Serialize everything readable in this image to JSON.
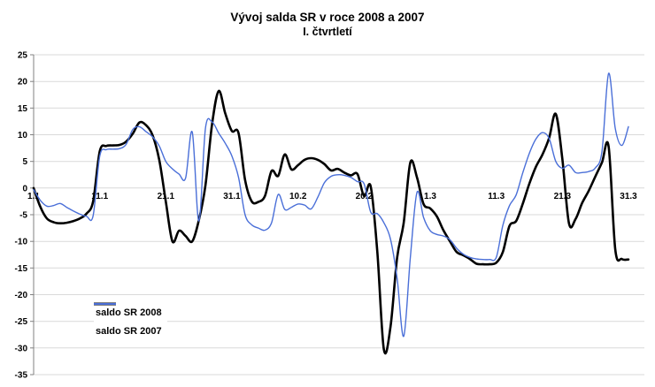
{
  "title": "Vývoj salda SR v roce 2008 a 2007",
  "subtitle": "I. čtvrtletí",
  "colors": {
    "series_2008": "#000000",
    "series_2007": "#4a6fd8",
    "gridline": "#d9d9d9",
    "axis": "#808080",
    "text": "#000000",
    "background": "#ffffff"
  },
  "legend": {
    "item_2008": "saldo SR 2008",
    "item_2007": "saldo SR 2007"
  },
  "chart_data": {
    "type": "line",
    "title": "Vývoj salda SR v roce 2008 a 2007",
    "subtitle": "I. čtvrtletí",
    "xlabel": "",
    "ylabel": "",
    "ylim": [
      -35,
      25
    ],
    "y_ticks": [
      25,
      20,
      15,
      10,
      5,
      0,
      -5,
      -10,
      -15,
      -20,
      -25,
      -30,
      -35
    ],
    "grid": "horizontal",
    "legend_position": "lower-left",
    "x_unit": "day (den.měsíc)",
    "x_tick_labels": [
      "1.1",
      "11.1",
      "21.1",
      "31.1",
      "10.2",
      "20.2",
      "1.3",
      "11.3",
      "21.3",
      "31.3"
    ],
    "x_tick_indices": [
      0,
      10,
      20,
      30,
      40,
      50,
      60,
      70,
      80,
      90
    ],
    "series": [
      {
        "name": "saldo SR 2008",
        "color": "#000000",
        "stroke_width": 2.6,
        "values": [
          0,
          -3.5,
          -5.7,
          -6.4,
          -6.6,
          -6.5,
          -6.2,
          -5.7,
          -4.8,
          -2.5,
          6.9,
          7.9,
          8.0,
          8.1,
          8.7,
          10.2,
          12.3,
          11.8,
          9.9,
          5.3,
          -2.5,
          -10.0,
          -8.0,
          -9.0,
          -10.0,
          -6.0,
          0.5,
          12.0,
          18.2,
          14.0,
          10.7,
          10.3,
          1.5,
          -2.5,
          -2.6,
          -1.5,
          3.2,
          2.3,
          6.3,
          3.5,
          4.3,
          5.3,
          5.6,
          5.3,
          4.5,
          3.3,
          3.6,
          2.9,
          2.4,
          2.6,
          -1.5,
          0.3,
          -12.0,
          -30.3,
          -26.0,
          -13.0,
          -6.5,
          4.8,
          2.0,
          -3.0,
          -3.8,
          -5.3,
          -7.9,
          -10.0,
          -12.0,
          -12.6,
          -13.3,
          -14.2,
          -14.3,
          -14.3,
          -14.0,
          -12.0,
          -7.1,
          -6.2,
          -3.0,
          0.8,
          4.0,
          6.3,
          9.4,
          13.9,
          5.5,
          -6.6,
          -5.8,
          -2.8,
          -0.5,
          2.2,
          4.8,
          7.8,
          -11.5,
          -13.3,
          -13.4
        ]
      },
      {
        "name": "saldo SR 2007",
        "color": "#4a6fd8",
        "stroke_width": 1.4,
        "values": [
          -0.3,
          -2.3,
          -3.4,
          -3.3,
          -2.9,
          -3.6,
          -4.3,
          -4.9,
          -5.3,
          -5.2,
          6.0,
          7.2,
          7.3,
          7.4,
          8.2,
          11.0,
          11.5,
          10.6,
          9.6,
          7.9,
          5.0,
          3.6,
          2.6,
          1.9,
          10.5,
          -6.2,
          11.2,
          12.4,
          10.3,
          8.4,
          6.0,
          2.0,
          -5.0,
          -6.9,
          -7.5,
          -7.9,
          -6.5,
          -1.2,
          -4.0,
          -3.6,
          -3.0,
          -3.2,
          -3.9,
          -1.7,
          1.0,
          2.2,
          2.5,
          2.4,
          2.0,
          1.2,
          0.8,
          -4.5,
          -4.8,
          -6.5,
          -9.6,
          -17.0,
          -27.8,
          -13.0,
          -0.8,
          -5.5,
          -8.0,
          -8.7,
          -9.0,
          -9.7,
          -11.3,
          -12.4,
          -13.0,
          -13.3,
          -13.4,
          -13.4,
          -13.0,
          -7.0,
          -3.3,
          -1.3,
          2.8,
          6.5,
          9.2,
          10.4,
          9.3,
          5.0,
          3.7,
          4.3,
          2.9,
          2.9,
          3.1,
          3.8,
          6.9,
          21.5,
          11.2,
          8.0,
          11.5
        ]
      }
    ]
  }
}
